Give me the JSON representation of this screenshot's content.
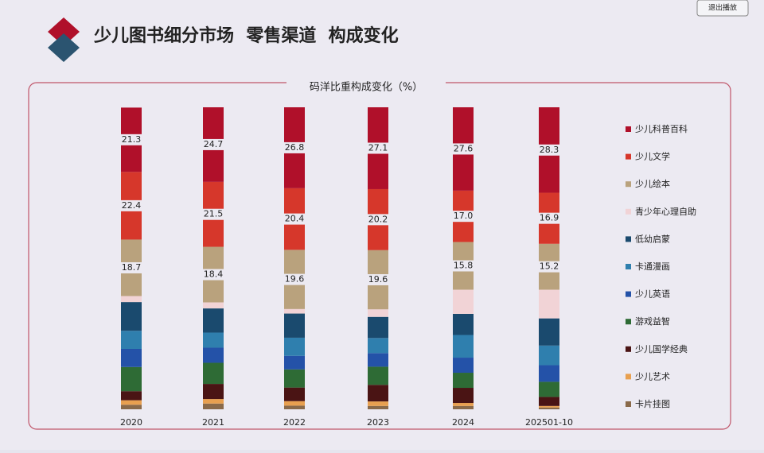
{
  "header": {
    "title": "少儿图书细分市场  零售渠道  构成变化",
    "button": "退出播放"
  },
  "chart_data": {
    "type": "stacked-bar",
    "title": "码洋比重构成变化（%）",
    "categories": [
      "2020",
      "2021",
      "2022",
      "2023",
      "2024",
      "202501-10"
    ],
    "ylim": [
      0,
      100
    ],
    "series": [
      {
        "name": "少儿科普百科",
        "color": "#b0102a",
        "values": [
          21.3,
          24.7,
          26.8,
          27.1,
          27.6,
          28.3
        ],
        "value_labels": [
          "21.3",
          "24.7",
          "26.8",
          "27.1",
          "27.6",
          "28.3"
        ]
      },
      {
        "name": "少儿文学",
        "color": "#d6372b",
        "values": [
          22.4,
          21.5,
          20.4,
          20.2,
          17.0,
          16.9
        ],
        "value_labels": [
          "22.4",
          "21.5",
          "20.4",
          "20.2",
          "17.0",
          "16.9"
        ]
      },
      {
        "name": "少儿绘本",
        "color": "#b9a27d",
        "values": [
          18.7,
          18.4,
          19.6,
          19.6,
          15.8,
          15.2
        ],
        "value_labels": [
          "18.7",
          "18.4",
          "19.6",
          "19.6",
          "15.8",
          "15.2"
        ]
      },
      {
        "name": "青少年心理自助",
        "color": "#f1d3d6",
        "values": [
          2,
          2,
          1.5,
          2.5,
          8,
          9.5
        ]
      },
      {
        "name": "低幼启蒙",
        "color": "#1a4a6e",
        "values": [
          9.5,
          8,
          8,
          7,
          7,
          9
        ]
      },
      {
        "name": "卡通漫画",
        "color": "#2f7fae",
        "values": [
          6,
          5,
          6,
          5,
          7.5,
          6.5
        ]
      },
      {
        "name": "少儿英语",
        "color": "#2452a8",
        "values": [
          6,
          5,
          4.5,
          4.5,
          5,
          5.5
        ]
      },
      {
        "name": "游戏益智",
        "color": "#2e6b35",
        "values": [
          8,
          7,
          6,
          6,
          5,
          5
        ]
      },
      {
        "name": "少儿国学经典",
        "color": "#4a1414",
        "values": [
          3,
          5,
          4.5,
          5.5,
          5,
          3
        ]
      },
      {
        "name": "少儿艺术",
        "color": "#e8a050",
        "values": [
          1.5,
          1.5,
          1.5,
          1.5,
          1,
          0.5
        ]
      },
      {
        "name": "卡片挂图",
        "color": "#8a6a4a",
        "values": [
          1.5,
          1.9,
          1.2,
          1.1,
          1.1,
          0.6
        ]
      }
    ]
  }
}
